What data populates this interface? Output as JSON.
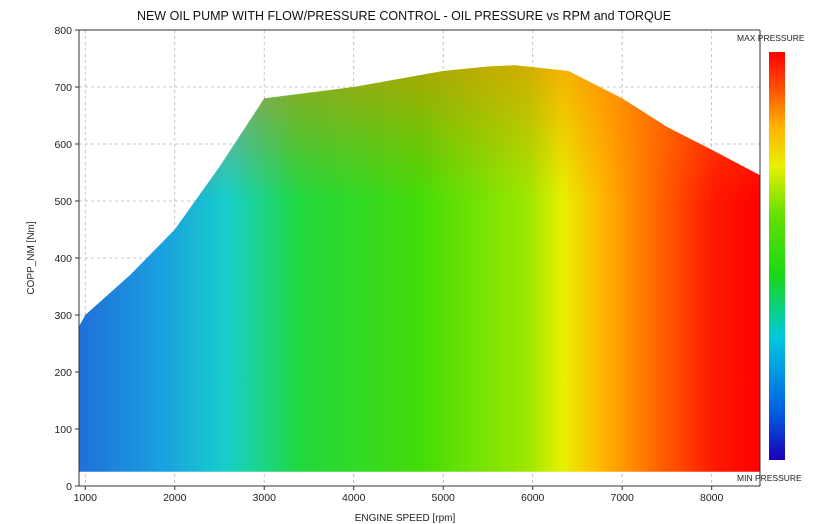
{
  "chart_data": {
    "type": "heatmap",
    "title": "NEW OIL PUMP WITH FLOW/PRESSURE CONTROL - OIL PRESSURE vs RPM and TORQUE",
    "xlabel": "ENGINE SPEED [rpm]",
    "ylabel": "COPP_NM [Nm]",
    "xlim": [
      930,
      8540
    ],
    "ylim": [
      0,
      800
    ],
    "x_ticks": [
      1000,
      2000,
      3000,
      4000,
      5000,
      6000,
      7000,
      8000
    ],
    "y_ticks": [
      0,
      100,
      200,
      300,
      400,
      500,
      600,
      700,
      800
    ],
    "grid": true,
    "colorscale": {
      "max_label": "MAX PRESSURE",
      "min_label": "MIN PRESSURE",
      "stops": [
        "#1a00b8",
        "#0060e0",
        "#00c8e0",
        "#18d818",
        "#64e000",
        "#e8f000",
        "#ffb000",
        "#ff5000",
        "#ff0000"
      ]
    },
    "envelope": {
      "description_free": true,
      "rpm": [
        930,
        1000,
        1500,
        2000,
        2500,
        3000,
        4000,
        5000,
        5500,
        5800,
        6000,
        6400,
        6500,
        7000,
        7500,
        8000,
        8540,
        8540,
        930
      ],
      "torque": [
        280,
        300,
        370,
        450,
        560,
        680,
        700,
        728,
        736,
        738,
        735,
        728,
        720,
        680,
        630,
        590,
        545,
        25,
        25
      ]
    }
  }
}
